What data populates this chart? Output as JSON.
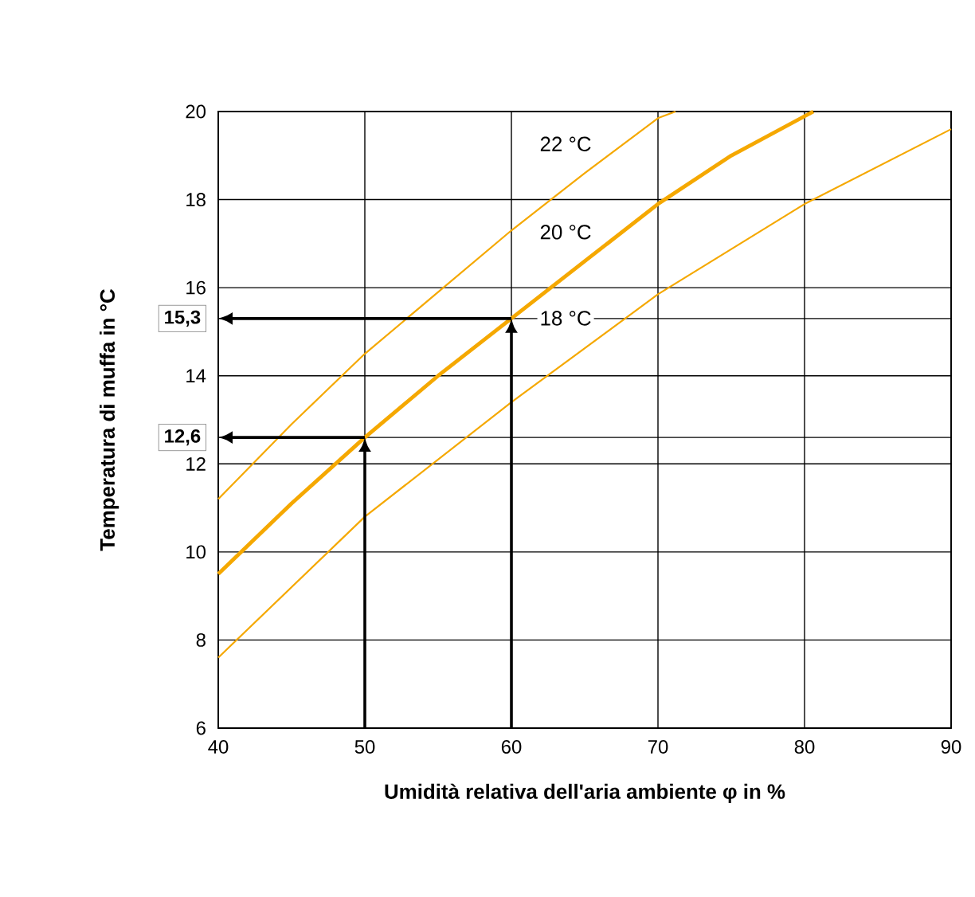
{
  "chart_data": {
    "type": "line",
    "xlabel": "Umidità relativa dell'aria ambiente φ in %",
    "ylabel": "Temperatura di muffa in °C",
    "xlim": [
      40,
      90
    ],
    "ylim": [
      6,
      20
    ],
    "xticks": [
      40,
      50,
      60,
      70,
      80,
      90
    ],
    "yticks": [
      6,
      8,
      10,
      12,
      {
        "value": 12.6,
        "label": "12,6"
      },
      14,
      {
        "value": 15.3,
        "label": "15,3"
      },
      16,
      18,
      20
    ],
    "grid": true,
    "legend": false,
    "marker": "none",
    "line_style": "solid",
    "series": [
      {
        "name": "22 °C",
        "color": "#f5a800",
        "x": [
          40,
          45,
          50,
          55,
          60,
          65,
          70,
          71.2
        ],
        "values": [
          11.2,
          12.9,
          14.5,
          15.9,
          17.3,
          18.6,
          19.85,
          20
        ]
      },
      {
        "name": "20 °C",
        "color": "#f5a800",
        "x": [
          40,
          45,
          50,
          55,
          60,
          65,
          70,
          75,
          80.6
        ],
        "values": [
          9.5,
          11.1,
          12.6,
          14.0,
          15.3,
          16.6,
          17.9,
          19.0,
          20
        ]
      },
      {
        "name": "18 °C",
        "color": "#f5a800",
        "x": [
          40,
          50,
          60,
          70,
          80,
          90
        ],
        "values": [
          7.6,
          10.8,
          13.4,
          15.85,
          17.9,
          19.6
        ]
      }
    ],
    "ref_lines": [
      {
        "axis": "x",
        "value": 50
      },
      {
        "axis": "y",
        "value": 12.6
      },
      {
        "axis": "x",
        "value": 60
      },
      {
        "axis": "y",
        "value": 15.3
      }
    ]
  }
}
